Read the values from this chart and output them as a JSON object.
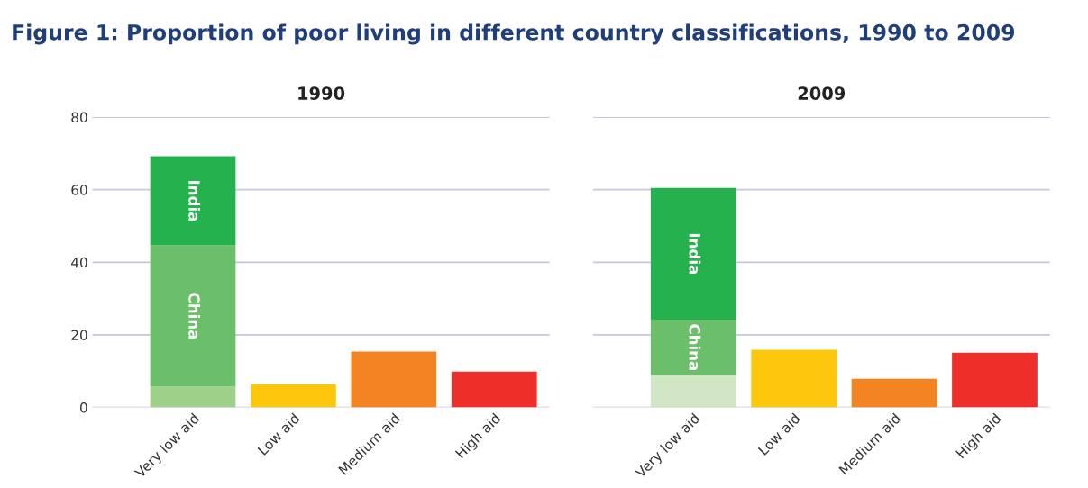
{
  "chart_data": [
    {
      "type": "bar",
      "title": "Figure 1: Proportion of poor living in different country classifications, 1990 to 2009",
      "subtitle": "1990",
      "categories": [
        "Very low aid",
        "Low aid",
        "Medium aid",
        "High aid"
      ],
      "stacked": true,
      "ylim": [
        0,
        80
      ],
      "yticks": [
        0,
        20,
        40,
        60,
        80
      ],
      "grid": "y",
      "series": [
        {
          "colors": [
            "#9fd08a",
            "#fdc70c",
            "#f48322",
            "#ee2f29"
          ],
          "values": [
            5.7,
            6.4,
            15.4,
            9.9
          ]
        },
        {
          "name": "China",
          "color": "#6cbf6a",
          "values": [
            39.0,
            null,
            null,
            null
          ]
        },
        {
          "name": "India",
          "color": "#25b14d",
          "values": [
            24.5,
            null,
            null,
            null
          ]
        }
      ]
    },
    {
      "type": "bar",
      "subtitle": "2009",
      "categories": [
        "Very low aid",
        "Low aid",
        "Medium aid",
        "High aid"
      ],
      "stacked": true,
      "ylim": [
        0,
        80
      ],
      "yticks": [
        0,
        20,
        40,
        60,
        80
      ],
      "grid": "y",
      "tick_labels": "x",
      "series": [
        {
          "colors": [
            "#d0e6c5",
            "#fdc70c",
            "#f48322",
            "#ee2f29"
          ],
          "values": [
            8.9,
            15.9,
            7.9,
            15.1
          ]
        },
        {
          "name": "China",
          "color": "#6cbf6a",
          "values": [
            15.3,
            null,
            null,
            null
          ]
        },
        {
          "name": "India",
          "color": "#25b14d",
          "values": [
            36.3,
            null,
            null,
            null
          ]
        }
      ]
    }
  ]
}
